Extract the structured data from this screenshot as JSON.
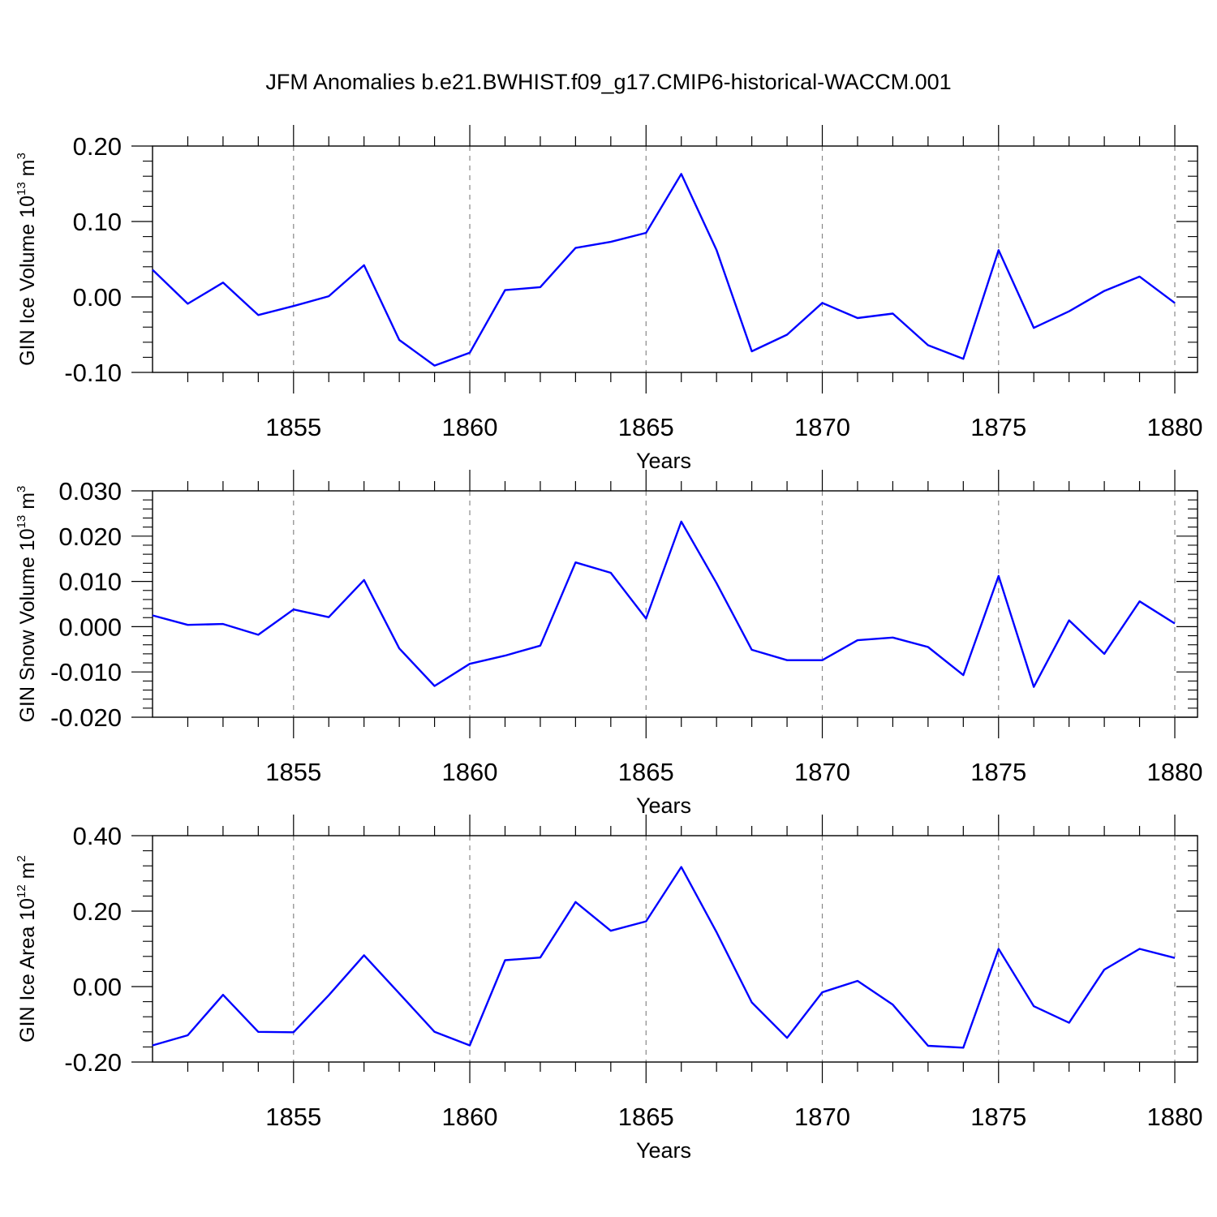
{
  "title": "JFM Anomalies b.e21.BWHIST.f09_g17.CMIP6-historical-WACCM.001",
  "colors": {
    "line": "#0000ff",
    "axis": "#000000",
    "grid": "#888888"
  },
  "chart_data": [
    {
      "type": "line",
      "xlabel": "Years",
      "ylabel": {
        "text": "GIN Ice Volume 10",
        "sup": "13",
        "unit": " m",
        "unit_sup": "3"
      },
      "xlim": [
        1851,
        1880
      ],
      "ylim": [
        -0.1,
        0.2
      ],
      "x_ticks": [
        1855,
        1860,
        1865,
        1870,
        1875,
        1880
      ],
      "y_ticks": [
        -0.1,
        0.0,
        0.1,
        0.2
      ],
      "y_tick_labels": [
        "-0.10",
        "0.00",
        "0.10",
        "0.20"
      ],
      "grid": "vertical dashed at x ticks",
      "x": [
        1851,
        1852,
        1853,
        1854,
        1855,
        1856,
        1857,
        1858,
        1859,
        1860,
        1861,
        1862,
        1863,
        1864,
        1865,
        1866,
        1867,
        1868,
        1869,
        1870,
        1871,
        1872,
        1873,
        1874,
        1875,
        1876,
        1877,
        1878,
        1879,
        1880
      ],
      "values": [
        0.036,
        -0.009,
        0.019,
        -0.024,
        -0.012,
        0.001,
        0.042,
        -0.057,
        -0.091,
        -0.074,
        0.009,
        0.013,
        0.065,
        0.073,
        0.085,
        0.163,
        0.062,
        -0.072,
        -0.05,
        -0.008,
        -0.028,
        -0.022,
        -0.064,
        -0.082,
        0.062,
        -0.041,
        -0.019,
        0.008,
        0.027,
        -0.008
      ]
    },
    {
      "type": "line",
      "xlabel": "Years",
      "ylabel": {
        "text": "GIN Snow Volume 10",
        "sup": "13",
        "unit": " m",
        "unit_sup": "3"
      },
      "xlim": [
        1851,
        1880
      ],
      "ylim": [
        -0.02,
        0.03
      ],
      "x_ticks": [
        1855,
        1860,
        1865,
        1870,
        1875,
        1880
      ],
      "y_ticks": [
        -0.02,
        -0.01,
        0.0,
        0.01,
        0.02,
        0.03
      ],
      "y_tick_labels": [
        "-0.020",
        "-0.010",
        "0.000",
        "0.010",
        "0.020",
        "0.030"
      ],
      "grid": "vertical dashed at x ticks",
      "x": [
        1851,
        1852,
        1853,
        1854,
        1855,
        1856,
        1857,
        1858,
        1859,
        1860,
        1861,
        1862,
        1863,
        1864,
        1865,
        1866,
        1867,
        1868,
        1869,
        1870,
        1871,
        1872,
        1873,
        1874,
        1875,
        1876,
        1877,
        1878,
        1879,
        1880
      ],
      "values": [
        0.0025,
        0.0004,
        0.0006,
        -0.0018,
        0.0038,
        0.0021,
        0.0103,
        -0.0048,
        -0.0131,
        -0.0082,
        -0.0064,
        -0.0042,
        0.0142,
        0.0119,
        0.0018,
        0.0232,
        0.0096,
        -0.0051,
        -0.0074,
        -0.0074,
        -0.003,
        -0.0024,
        -0.0045,
        -0.0107,
        0.0112,
        -0.0133,
        0.0014,
        -0.006,
        0.0056,
        0.0007
      ]
    },
    {
      "type": "line",
      "xlabel": "Years",
      "ylabel": {
        "text": "GIN Ice Area 10",
        "sup": "12",
        "unit": " m",
        "unit_sup": "2"
      },
      "xlim": [
        1851,
        1880
      ],
      "ylim": [
        -0.2,
        0.4
      ],
      "x_ticks": [
        1855,
        1860,
        1865,
        1870,
        1875,
        1880
      ],
      "y_ticks": [
        -0.2,
        0.0,
        0.2,
        0.4
      ],
      "y_tick_labels": [
        "-0.20",
        "0.00",
        "0.20",
        "0.40"
      ],
      "grid": "vertical dashed at x ticks",
      "x": [
        1851,
        1852,
        1853,
        1854,
        1855,
        1856,
        1857,
        1858,
        1859,
        1860,
        1861,
        1862,
        1863,
        1864,
        1865,
        1866,
        1867,
        1868,
        1869,
        1870,
        1871,
        1872,
        1873,
        1874,
        1875,
        1876,
        1877,
        1878,
        1879,
        1880
      ],
      "values": [
        -0.156,
        -0.129,
        -0.022,
        -0.12,
        -0.121,
        -0.023,
        0.083,
        -0.018,
        -0.12,
        -0.156,
        0.07,
        0.077,
        0.224,
        0.148,
        0.173,
        0.317,
        0.144,
        -0.042,
        -0.136,
        -0.015,
        0.015,
        -0.048,
        -0.157,
        -0.162,
        0.1,
        -0.052,
        -0.096,
        0.045,
        0.1,
        0.076
      ]
    }
  ]
}
